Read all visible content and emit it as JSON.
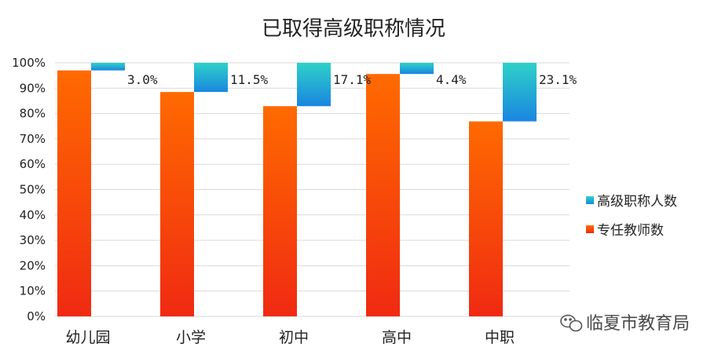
{
  "chart_data": {
    "type": "bar",
    "title": "已取得高级职称情况",
    "categories": [
      "幼儿园",
      "小学",
      "初中",
      "高中",
      "中职"
    ],
    "series": [
      {
        "name": "高级职称人数",
        "values": [
          3.0,
          11.5,
          17.1,
          4.4,
          23.1
        ],
        "labels": [
          "3.0%",
          "11.5%",
          "17.1%",
          "4.4%",
          "23.1%"
        ],
        "color": "#2bb3cf"
      },
      {
        "name": "专任教师数",
        "values": [
          97.0,
          88.5,
          82.9,
          95.6,
          76.9
        ],
        "color": "#ff5a0a"
      }
    ],
    "yticks": [
      "0%",
      "10%",
      "20%",
      "30%",
      "40%",
      "50%",
      "60%",
      "70%",
      "80%",
      "90%",
      "100%"
    ],
    "ylim": [
      0,
      100
    ],
    "grid": true,
    "legend_position": "right"
  },
  "watermark": {
    "text": "临夏市教育局",
    "icon": "wechat-icon"
  },
  "colors": {
    "orange_top": "#ff6a00",
    "orange_bottom": "#f02a12",
    "blue_top": "#2ec9c9",
    "blue_bottom": "#1a8fe0",
    "grid": "#d9d9d9"
  }
}
